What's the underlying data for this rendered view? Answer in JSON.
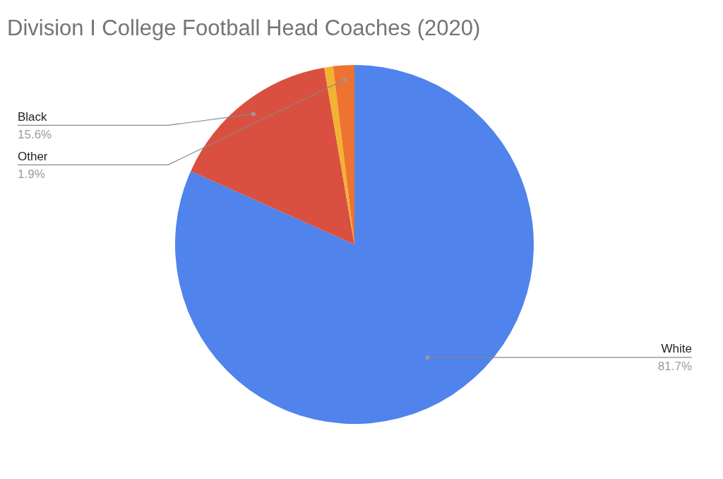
{
  "chart_data": {
    "type": "pie",
    "title": "Division I College Football Head Coaches (2020)",
    "categories": [
      "White",
      "Black",
      null,
      "Other"
    ],
    "values": [
      81.7,
      15.6,
      0.8,
      1.9
    ],
    "value_labels": [
      "81.7%",
      "15.6%",
      null,
      "1.9%"
    ],
    "colors": [
      "#5083ec",
      "#d95040",
      "#f2b330",
      "#ee7330"
    ],
    "legend": false
  }
}
